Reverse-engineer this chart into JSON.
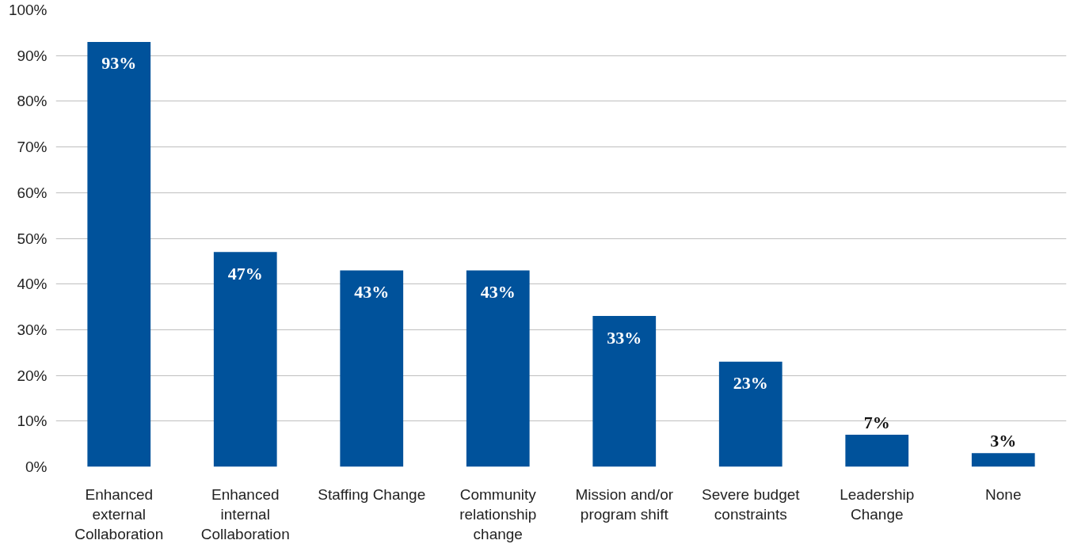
{
  "chart_data": {
    "type": "bar",
    "categories": [
      "Enhanced external Collaboration",
      "Enhanced internal Collaboration",
      "Staffing Change",
      "Community relationship change",
      "Mission and/or program shift",
      "Severe budget constraints",
      "Leadership Change",
      "None"
    ],
    "values": [
      93,
      47,
      43,
      43,
      33,
      23,
      7,
      3
    ],
    "value_labels": [
      "93%",
      "47%",
      "43%",
      "43%",
      "33%",
      "23%",
      "7%",
      "3%"
    ],
    "color": "#00529b",
    "ylim": [
      0,
      100
    ],
    "yticks": [
      {
        "value": 0,
        "label": "0%"
      },
      {
        "value": 10,
        "label": "10%"
      },
      {
        "value": 20,
        "label": "20%"
      },
      {
        "value": 30,
        "label": "30%"
      },
      {
        "value": 40,
        "label": "40%"
      },
      {
        "value": 50,
        "label": "50%"
      },
      {
        "value": 60,
        "label": "60%"
      },
      {
        "value": 70,
        "label": "70%"
      },
      {
        "value": 80,
        "label": "80%"
      },
      {
        "value": 90,
        "label": "90%"
      },
      {
        "value": 100,
        "label": "100%"
      }
    ],
    "grid": "y"
  }
}
